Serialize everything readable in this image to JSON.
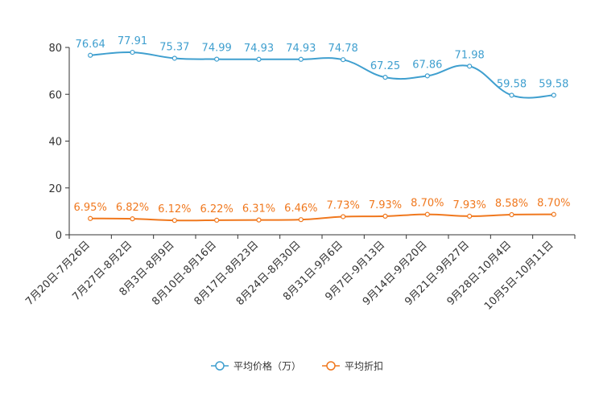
{
  "chart_data": {
    "type": "line",
    "title": "",
    "xlabel": "",
    "ylabel": "",
    "ylim": [
      0,
      80
    ],
    "yticks": [
      0,
      20,
      40,
      60,
      80
    ],
    "grid": false,
    "legend_position": "bottom-center",
    "categories": [
      "7月20日-7月26日",
      "7月27日-8月2日",
      "8月3日-8月9日",
      "8月10日-8月16日",
      "8月17日-8月23日",
      "8月24日-8月30日",
      "8月31日-9月6日",
      "9月7日-9月13日",
      "9月14日-9月20日",
      "9月21日-9月27日",
      "9月28日-10月4日",
      "10月5日-10月11日"
    ],
    "series": [
      {
        "name": "平均价格（万）",
        "color": "#3f9fcf",
        "values": [
          76.64,
          77.91,
          75.37,
          74.99,
          74.93,
          74.93,
          74.78,
          67.25,
          67.86,
          71.98,
          59.58,
          59.58
        ],
        "labels": [
          "76.64",
          "77.91",
          "75.37",
          "74.99",
          "74.93",
          "74.93",
          "74.78",
          "67.25",
          "67.86",
          "71.98",
          "59.58",
          "59.58"
        ]
      },
      {
        "name": "平均折扣",
        "color": "#f0781e",
        "values": [
          6.95,
          6.82,
          6.12,
          6.22,
          6.31,
          6.46,
          7.73,
          7.93,
          8.7,
          7.93,
          8.58,
          8.7
        ],
        "labels": [
          "6.95%",
          "6.82%",
          "6.12%",
          "6.22%",
          "6.31%",
          "6.46%",
          "7.73%",
          "7.93%",
          "8.70%",
          "7.93%",
          "8.58%",
          "8.70%"
        ]
      }
    ]
  }
}
